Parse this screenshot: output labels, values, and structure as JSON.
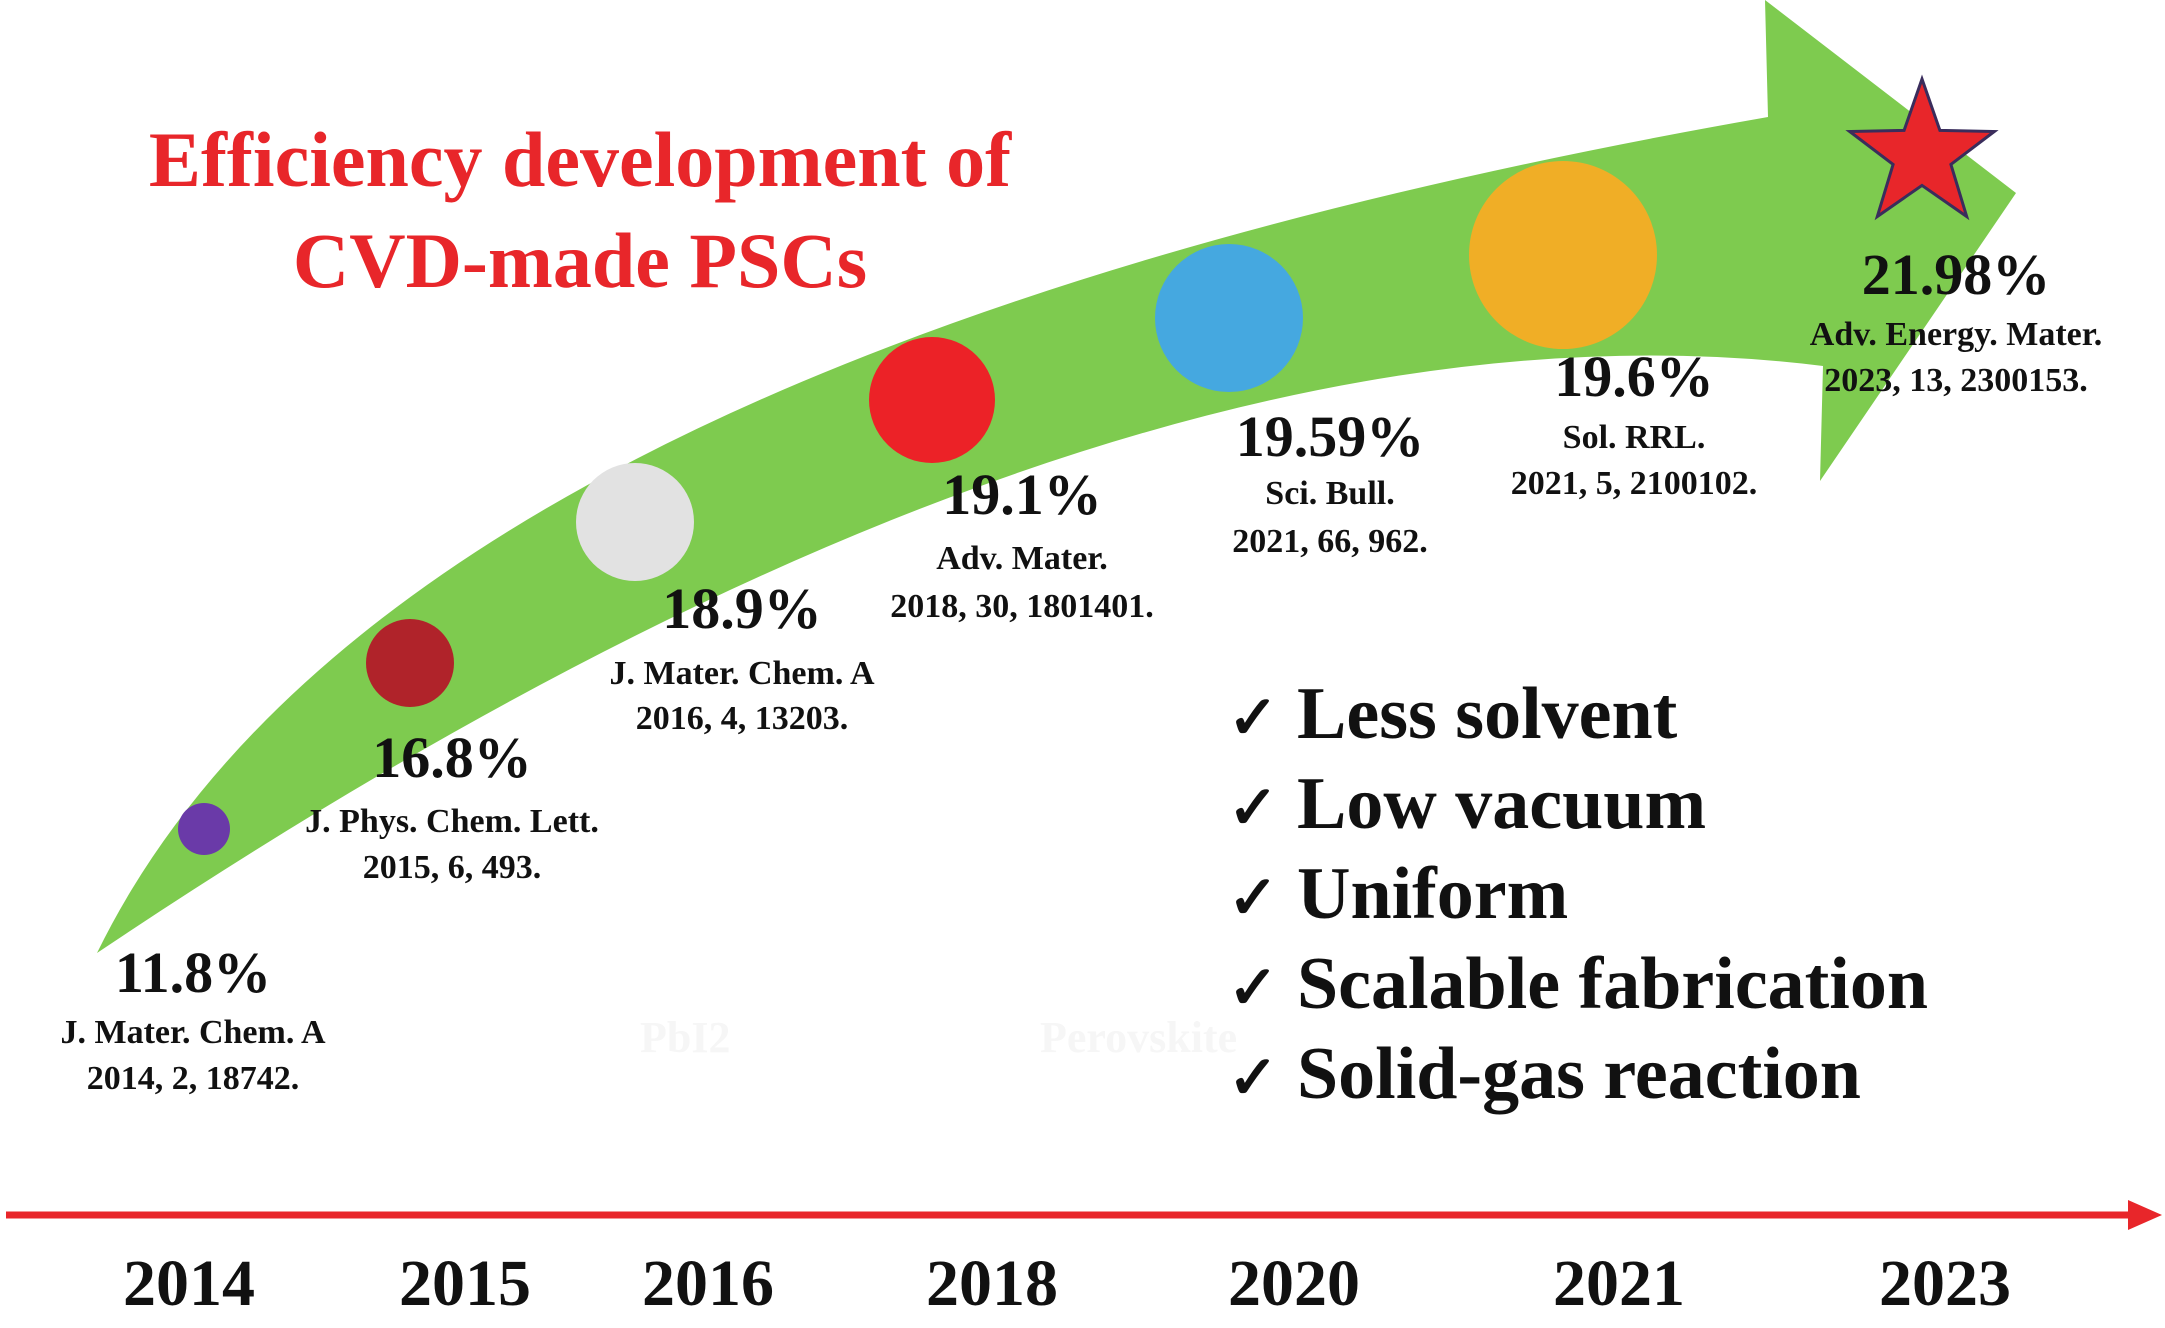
{
  "title": {
    "line1": "Efficiency development of",
    "line2": "CVD-made PSCs"
  },
  "colors": {
    "title": "#e8262a",
    "arrow": "#7ecb4f",
    "timeline": "#e8262a",
    "text": "#111111",
    "star": "#e8262a",
    "star_outline": "#3a2d5c"
  },
  "milestones": [
    {
      "efficiency": "11.8%",
      "journal": "J. Mater. Chem. A",
      "ref": "2014, 2, 18742.",
      "color": "#6a3aa8",
      "marker": "circle"
    },
    {
      "efficiency": "16.8%",
      "journal": "J. Phys. Chem. Lett.",
      "ref": "2015, 6, 493.",
      "color": "#b0232a",
      "marker": "circle"
    },
    {
      "efficiency": "18.9%",
      "journal": "J. Mater. Chem. A",
      "ref": "2016, 4, 13203.",
      "color": "#e2e2e2",
      "marker": "circle"
    },
    {
      "efficiency": "19.1%",
      "journal": "Adv. Mater.",
      "ref": "2018, 30, 1801401.",
      "color": "#ec2227",
      "marker": "circle"
    },
    {
      "efficiency": "19.59%",
      "journal": "Sci. Bull.",
      "ref": "2021, 66, 962.",
      "color": "#45a8e0",
      "marker": "circle"
    },
    {
      "efficiency": "19.6%",
      "journal": "Sol. RRL.",
      "ref": "2021, 5, 2100102.",
      "color": "#f0ae26",
      "marker": "circle"
    },
    {
      "efficiency": "21.98%",
      "journal": "Adv. Energy. Mater.",
      "ref": "2023, 13, 2300153.",
      "color": "#e8262a",
      "marker": "star"
    }
  ],
  "advantages": [
    "Less solvent",
    "Low vacuum",
    "Uniform",
    "Scalable fabrication",
    "Solid-gas reaction"
  ],
  "check_mark": "✓",
  "faint_labels": [
    "PbI2",
    "Perovskite"
  ],
  "years": [
    "2014",
    "2015",
    "2016",
    "2018",
    "2020",
    "2021",
    "2023"
  ]
}
